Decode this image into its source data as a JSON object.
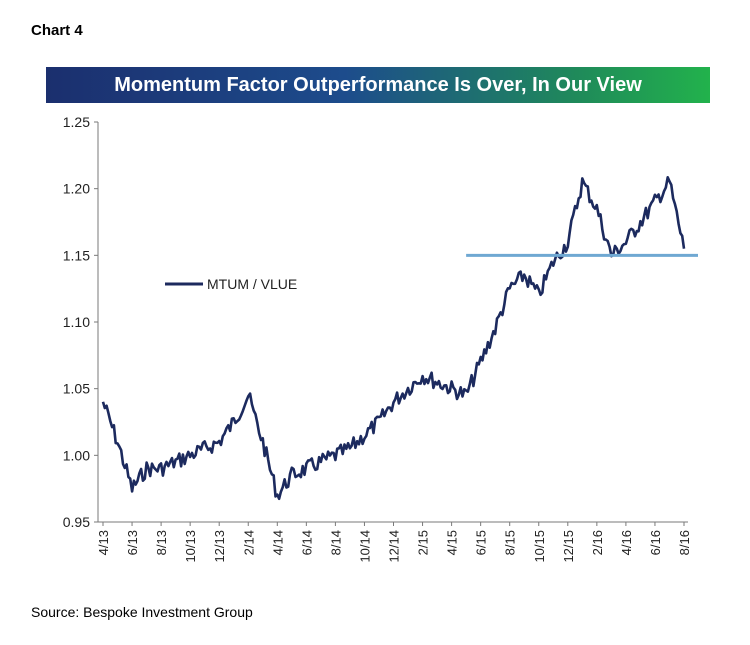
{
  "chart_label": "Chart 4",
  "source": "Source: Bespoke Investment Group",
  "chart_data": {
    "type": "line",
    "title": "Momentum Factor Outperformance Is Over, In Our View",
    "xlabel": "",
    "ylabel": "",
    "ylim": [
      0.95,
      1.25
    ],
    "yticks": [
      "1.25",
      "1.20",
      "1.15",
      "1.10",
      "1.05",
      "1.00",
      "0.95"
    ],
    "xticks": [
      "4/13",
      "6/13",
      "8/13",
      "10/13",
      "12/13",
      "2/14",
      "4/14",
      "6/14",
      "8/14",
      "10/14",
      "12/14",
      "2/15",
      "4/15",
      "6/15",
      "8/15",
      "10/15",
      "12/15",
      "2/16",
      "4/16",
      "6/16",
      "8/16"
    ],
    "grid": false,
    "legend": "left",
    "line_color": "#1c2a5e",
    "reference_color": "#6fa8d2",
    "series": [
      {
        "name": "MTUM / VLUE",
        "x": [
          "2013-04",
          "2013-05",
          "2013-06",
          "2013-07",
          "2013-08",
          "2013-09",
          "2013-10",
          "2013-11",
          "2013-12",
          "2014-01",
          "2014-02",
          "2014-03",
          "2014-04",
          "2014-05",
          "2014-06",
          "2014-07",
          "2014-08",
          "2014-09",
          "2014-10",
          "2014-11",
          "2014-12",
          "2015-01",
          "2015-02",
          "2015-03",
          "2015-04",
          "2015-05",
          "2015-06",
          "2015-07",
          "2015-08",
          "2015-09",
          "2015-10",
          "2015-11",
          "2015-12",
          "2016-01",
          "2016-02",
          "2016-03",
          "2016-04",
          "2016-05",
          "2016-06",
          "2016-07",
          "2016-08"
        ],
        "values": [
          1.04,
          1.01,
          0.975,
          0.99,
          0.99,
          0.995,
          1.0,
          1.005,
          1.01,
          1.025,
          1.045,
          1.01,
          0.97,
          0.985,
          0.99,
          0.995,
          1.0,
          1.005,
          1.015,
          1.025,
          1.04,
          1.05,
          1.06,
          1.055,
          1.05,
          1.045,
          1.07,
          1.095,
          1.125,
          1.135,
          1.12,
          1.145,
          1.16,
          1.205,
          1.185,
          1.15,
          1.16,
          1.175,
          1.19,
          1.205,
          1.155
        ]
      }
    ],
    "reference_line": {
      "from": "2015-05",
      "to": "2016-08",
      "value": 1.15
    }
  }
}
